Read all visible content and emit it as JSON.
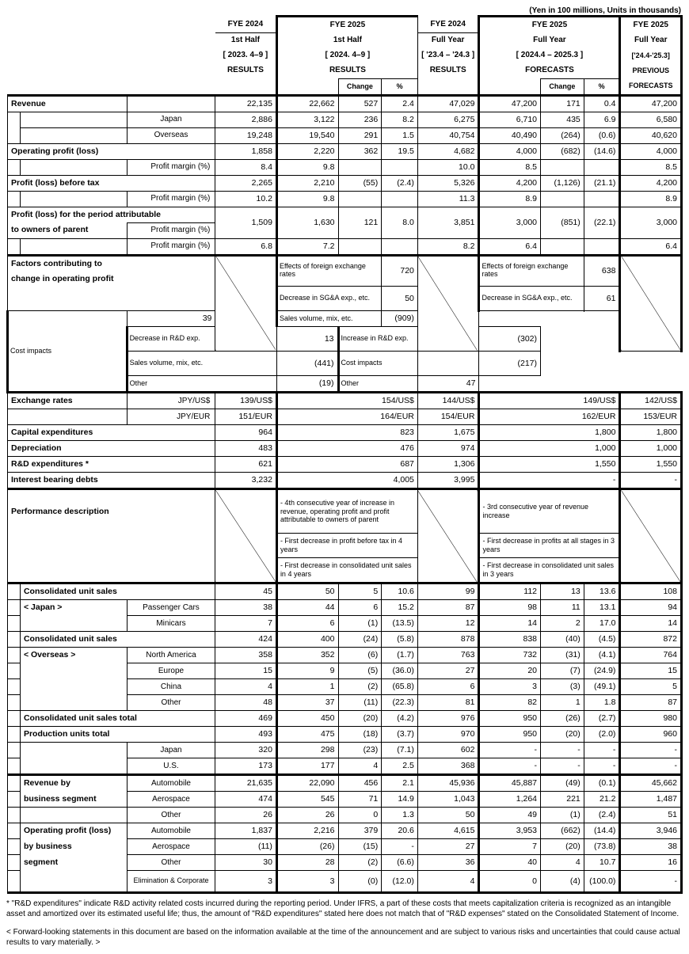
{
  "unitnote": "(Yen in 100 millions, Units in thousands)",
  "h": {
    "c1a": "FYE 2024",
    "c1b": "1st Half",
    "c1c": "[ 2023. 4–9 ]",
    "c1d": "RESULTS",
    "c2a": "FYE 2025",
    "c2b": "1st Half",
    "c2c": "[ 2024. 4–9 ]",
    "c2d": "RESULTS",
    "c2ch": "Change",
    "c2p": "%",
    "c3a": "FYE 2024",
    "c3b": "Full Year",
    "c3c": "[ '23.4 – '24.3 ]",
    "c3d": "RESULTS",
    "c4a": "FYE 2025",
    "c4b": "Full Year",
    "c4c": "[ 2024.4 – 2025.3 ]",
    "c4d": "FORECASTS",
    "c4ch": "Change",
    "c4p": "%",
    "c5a": "FYE 2025",
    "c5b": "Full Year",
    "c5c": "['24.4-'25.3]",
    "c5d": "PREVIOUS",
    "c5e": "FORECASTS"
  },
  "r": {
    "rev": {
      "l": "Revenue",
      "v": [
        "22,135",
        "22,662",
        "527",
        "2.4",
        "47,029",
        "47,200",
        "171",
        "0.4",
        "47,200"
      ]
    },
    "jp": {
      "l": "Japan",
      "v": [
        "2,886",
        "3,122",
        "236",
        "8.2",
        "6,275",
        "6,710",
        "435",
        "6.9",
        "6,580"
      ]
    },
    "os": {
      "l": "Overseas",
      "v": [
        "19,248",
        "19,540",
        "291",
        "1.5",
        "40,754",
        "40,490",
        "(264)",
        "(0.6)",
        "40,620"
      ]
    },
    "op": {
      "l": "Operating profit (loss)",
      "v": [
        "1,858",
        "2,220",
        "362",
        "19.5",
        "4,682",
        "4,000",
        "(682)",
        "(14.6)",
        "4,000"
      ]
    },
    "opm": {
      "l": "Profit margin (%)",
      "v": [
        "8.4",
        "9.8",
        "",
        "",
        "10.0",
        "8.5",
        "",
        "",
        "8.5"
      ]
    },
    "pbt": {
      "l": "Profit (loss) before tax",
      "v": [
        "2,265",
        "2,210",
        "(55)",
        "(2.4)",
        "5,326",
        "4,200",
        "(1,126)",
        "(21.1)",
        "4,200"
      ]
    },
    "pbtm": {
      "l": "Profit margin (%)",
      "v": [
        "10.2",
        "9.8",
        "",
        "",
        "11.3",
        "8.9",
        "",
        "",
        "8.9"
      ]
    },
    "pat1": "Profit (loss) for the period attributable",
    "pat2": "to owners of parent",
    "pat": {
      "v": [
        "1,509",
        "1,630",
        "121",
        "8.0",
        "3,851",
        "3,000",
        "(851)",
        "(22.1)",
        "3,000"
      ]
    },
    "patm": {
      "l": "Profit margin (%)",
      "v": [
        "6.8",
        "7.2",
        "",
        "",
        "8.2",
        "6.4",
        "",
        "",
        "6.4"
      ]
    },
    "fac1": "Factors contributing to",
    "fac2": "change in operating profit",
    "facA": [
      [
        "Effects of foreign exchange rates",
        "720"
      ],
      [
        "Decrease in SG&A exp., etc.",
        "50"
      ],
      [
        "Cost impacts",
        "39"
      ],
      [
        "Decrease in R&D exp.",
        "13"
      ],
      [
        "Sales volume, mix, etc.",
        "(441)"
      ],
      [
        "Other",
        "(19)"
      ]
    ],
    "facB": [
      [
        "Effects of foreign exchange rates",
        "638"
      ],
      [
        "Decrease in SG&A exp., etc.",
        "61"
      ],
      [
        "Sales volume, mix, etc.",
        "(909)"
      ],
      [
        "Increase in R&D exp.",
        "(302)"
      ],
      [
        "Cost impacts",
        "(217)"
      ],
      [
        "Other",
        "47"
      ]
    ],
    "ex": {
      "l": "Exchange rates",
      "usd": "JPY/US$",
      "eur": "JPY/EUR",
      "u": [
        "139/US$",
        "154/US$",
        "144/US$",
        "149/US$",
        "142/US$"
      ],
      "e": [
        "151/EUR",
        "164/EUR",
        "154/EUR",
        "162/EUR",
        "153/EUR"
      ]
    },
    "cap": {
      "l": "Capital expenditures",
      "v": [
        "964",
        "823",
        "1,675",
        "1,800",
        "1,800"
      ]
    },
    "dep": {
      "l": "Depreciation",
      "v": [
        "483",
        "476",
        "974",
        "1,000",
        "1,000"
      ]
    },
    "rd": {
      "l": "R&D expenditures *",
      "v": [
        "621",
        "687",
        "1,306",
        "1,550",
        "1,550"
      ]
    },
    "ibd": {
      "l": "Interest bearing debts",
      "v": [
        "3,232",
        "4,005",
        "3,995",
        "-",
        "-"
      ]
    },
    "perf": {
      "l": "Performance description",
      "a": [
        "- 4th consecutive year of increase in revenue, operating profit and profit attributable to owners of parent",
        "- First decrease in profit before tax in 4 years",
        "- First decrease in consolidated unit sales in 4 years"
      ],
      "b": [
        "- 3rd consecutive year of revenue increase",
        "- First decrease in profits at all stages in 3 years",
        "- First decrease in consolidated unit sales in 3 years"
      ]
    },
    "cusj": {
      "l": "Consolidated unit sales",
      "l2": "< Japan >",
      "v": [
        "45",
        "50",
        "5",
        "10.6",
        "99",
        "112",
        "13",
        "13.6",
        "108"
      ]
    },
    "pc": {
      "l": "Passenger Cars",
      "v": [
        "38",
        "44",
        "6",
        "15.2",
        "87",
        "98",
        "11",
        "13.1",
        "94"
      ]
    },
    "mc": {
      "l": "Minicars",
      "v": [
        "7",
        "6",
        "(1)",
        "(13.5)",
        "12",
        "14",
        "2",
        "17.0",
        "14"
      ]
    },
    "cuso": {
      "l": "Consolidated unit sales",
      "l2": "< Overseas >",
      "v": [
        "424",
        "400",
        "(24)",
        "(5.8)",
        "878",
        "838",
        "(40)",
        "(4.5)",
        "872"
      ]
    },
    "na": {
      "l": "North America",
      "v": [
        "358",
        "352",
        "(6)",
        "(1.7)",
        "763",
        "732",
        "(31)",
        "(4.1)",
        "764"
      ]
    },
    "eu": {
      "l": "Europe",
      "v": [
        "15",
        "9",
        "(5)",
        "(36.0)",
        "27",
        "20",
        "(7)",
        "(24.9)",
        "15"
      ]
    },
    "cn": {
      "l": "China",
      "v": [
        "4",
        "1",
        "(2)",
        "(65.8)",
        "6",
        "3",
        "(3)",
        "(49.1)",
        "5"
      ]
    },
    "oth": {
      "l": "Other",
      "v": [
        "48",
        "37",
        "(11)",
        "(22.3)",
        "81",
        "82",
        "1",
        "1.8",
        "87"
      ]
    },
    "cut": {
      "l": "Consolidated unit sales total",
      "v": [
        "469",
        "450",
        "(20)",
        "(4.2)",
        "976",
        "950",
        "(26)",
        "(2.7)",
        "980"
      ]
    },
    "put": {
      "l": "Production units total",
      "v": [
        "493",
        "475",
        "(18)",
        "(3.7)",
        "970",
        "950",
        "(20)",
        "(2.0)",
        "960"
      ]
    },
    "pjp": {
      "l": "Japan",
      "v": [
        "320",
        "298",
        "(23)",
        "(7.1)",
        "602",
        "-",
        "-",
        "-",
        "-"
      ]
    },
    "pus": {
      "l": "U.S.",
      "v": [
        "173",
        "177",
        "4",
        "2.5",
        "368",
        "-",
        "-",
        "-",
        "-"
      ]
    },
    "rbs1": "Revenue by",
    "rbs2": "business segment",
    "rauto": {
      "l": "Automobile",
      "v": [
        "21,635",
        "22,090",
        "456",
        "2.1",
        "45,936",
        "45,887",
        "(49)",
        "(0.1)",
        "45,662"
      ]
    },
    "raero": {
      "l": "Aerospace",
      "v": [
        "474",
        "545",
        "71",
        "14.9",
        "1,043",
        "1,264",
        "221",
        "21.2",
        "1,487"
      ]
    },
    "roth": {
      "l": "Other",
      "v": [
        "26",
        "26",
        "0",
        "1.3",
        "50",
        "49",
        "(1)",
        "(2.4)",
        "51"
      ]
    },
    "obs1": "Operating profit (loss)",
    "obs2": "by business",
    "obs3": "segment",
    "oauto": {
      "l": "Automobile",
      "v": [
        "1,837",
        "2,216",
        "379",
        "20.6",
        "4,615",
        "3,953",
        "(662)",
        "(14.4)",
        "3,946"
      ]
    },
    "oaero": {
      "l": "Aerospace",
      "v": [
        "(11)",
        "(26)",
        "(15)",
        "-",
        "27",
        "7",
        "(20)",
        "(73.8)",
        "38"
      ]
    },
    "ooth": {
      "l": "Other",
      "v": [
        "30",
        "28",
        "(2)",
        "(6.6)",
        "36",
        "40",
        "4",
        "10.7",
        "16"
      ]
    },
    "oec": {
      "l": "Elimination & Corporate",
      "v": [
        "3",
        "3",
        "(0)",
        "(12.0)",
        "4",
        "0",
        "(4)",
        "(100.0)",
        "-"
      ]
    }
  },
  "foot1": "* \"R&D expenditures\" indicate R&D activity related costs incurred during the reporting period. Under IFRS, a part of these costs that meets capitalization criteria is recognized as an intangible asset and amortized over its estimated useful life; thus, the amount of \"R&D expenditures\" stated here does not match that of \"R&D expenses\" stated on the Consolidated Statement of Income.",
  "foot2": "< Forward-looking statements in this document are based on the information available at the time of the announcement and are subject to various risks and uncertainties that could cause actual results to vary materially. >"
}
